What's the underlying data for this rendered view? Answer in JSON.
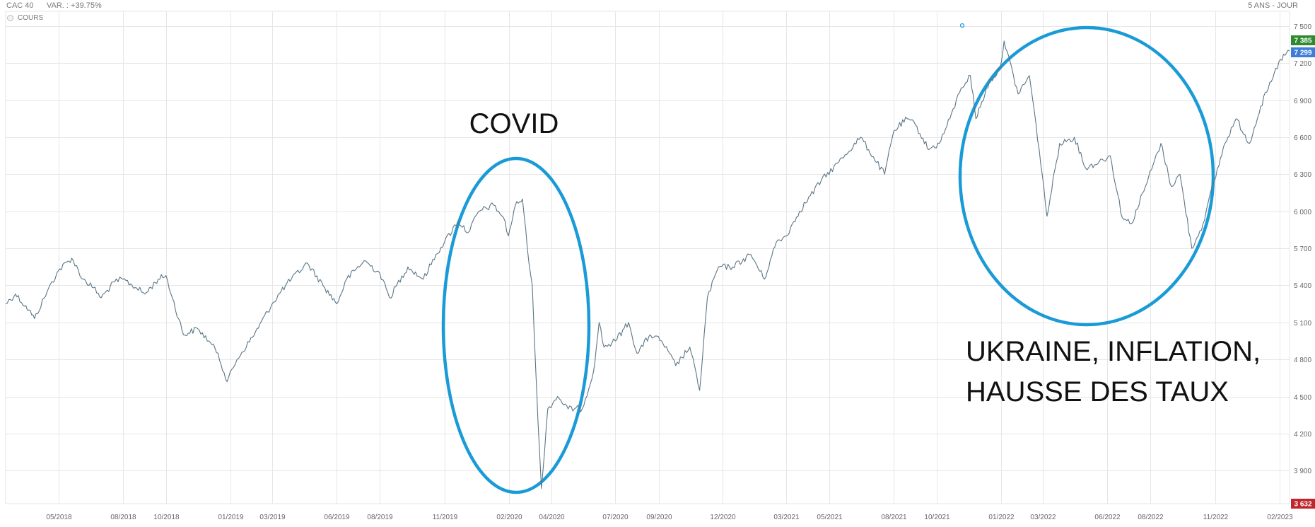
{
  "header": {
    "index_name": "CAC 40",
    "variation": "VAR. : +39.75%",
    "period": "5 ANS - JOUR"
  },
  "legend": {
    "series_label": "COURS"
  },
  "colors": {
    "line": "#5b7585",
    "grid": "#e6e6e6",
    "annotation_circle": "#1a9bd7",
    "badge_max": "#2d8a2d",
    "badge_last": "#3d7fd6",
    "badge_min": "#c0272d"
  },
  "badges": [
    {
      "label": "7 385",
      "value": 7385,
      "color_key": "badge_max"
    },
    {
      "label": "7 299",
      "value": 7299,
      "color_key": "badge_last"
    },
    {
      "label": "3 632",
      "value": 3632,
      "color_key": "badge_min"
    }
  ],
  "annotations": [
    {
      "text": "COVID",
      "lines": [
        "COVID"
      ]
    },
    {
      "text": "UKRAINE, INFLATION, HAUSSE DES TAUX",
      "lines": [
        "UKRAINE, INFLATION,",
        "HAUSSE DES TAUX"
      ]
    }
  ],
  "chart_data": {
    "type": "line",
    "title": "",
    "xlabel": "",
    "ylabel": "",
    "ylim": [
      3632,
      7620
    ],
    "y_ticks": [
      3900,
      4200,
      4500,
      4800,
      5100,
      5400,
      5700,
      6000,
      6300,
      6600,
      6900,
      7200,
      7500
    ],
    "y_tick_labels": [
      "3 900",
      "4 200",
      "4 500",
      "4 800",
      "5 100",
      "5 400",
      "5 700",
      "6 000",
      "6 300",
      "6 600",
      "6 900",
      "7 200",
      "7 500"
    ],
    "x_range": [
      "2018-02-15",
      "2023-02-15"
    ],
    "x_ticks": [
      "2018-05-01",
      "2018-08-01",
      "2018-10-01",
      "2019-01-01",
      "2019-03-01",
      "2019-06-01",
      "2019-08-01",
      "2019-11-01",
      "2020-02-01",
      "2020-04-01",
      "2020-07-01",
      "2020-09-01",
      "2020-12-01",
      "2021-03-01",
      "2021-05-01",
      "2021-08-01",
      "2021-10-01",
      "2022-01-01",
      "2022-03-01",
      "2022-06-01",
      "2022-08-01",
      "2022-11-01",
      "2023-02-01"
    ],
    "x_tick_labels": [
      "05/2018",
      "08/2018",
      "10/2018",
      "01/2019",
      "03/2019",
      "06/2019",
      "08/2019",
      "11/2019",
      "02/2020",
      "04/2020",
      "07/2020",
      "09/2020",
      "12/2020",
      "03/2021",
      "05/2021",
      "08/2021",
      "10/2021",
      "01/2022",
      "03/2022",
      "06/2022",
      "08/2022",
      "11/2022",
      "02/2023"
    ],
    "series": [
      {
        "name": "COURS",
        "points": [
          [
            "2018-02-15",
            5250
          ],
          [
            "2018-03-01",
            5330
          ],
          [
            "2018-03-20",
            5200
          ],
          [
            "2018-03-28",
            5130
          ],
          [
            "2018-04-15",
            5350
          ],
          [
            "2018-05-01",
            5520
          ],
          [
            "2018-05-20",
            5620
          ],
          [
            "2018-06-05",
            5450
          ],
          [
            "2018-06-20",
            5380
          ],
          [
            "2018-07-01",
            5300
          ],
          [
            "2018-07-20",
            5430
          ],
          [
            "2018-08-01",
            5450
          ],
          [
            "2018-08-20",
            5380
          ],
          [
            "2018-09-01",
            5330
          ],
          [
            "2018-09-20",
            5450
          ],
          [
            "2018-10-01",
            5480
          ],
          [
            "2018-10-10",
            5300
          ],
          [
            "2018-10-26",
            5000
          ],
          [
            "2018-11-15",
            5050
          ],
          [
            "2018-12-01",
            4950
          ],
          [
            "2018-12-14",
            4850
          ],
          [
            "2018-12-27",
            4620
          ],
          [
            "2019-01-10",
            4800
          ],
          [
            "2019-02-01",
            4980
          ],
          [
            "2019-03-01",
            5250
          ],
          [
            "2019-03-20",
            5400
          ],
          [
            "2019-04-20",
            5580
          ],
          [
            "2019-05-15",
            5380
          ],
          [
            "2019-06-01",
            5250
          ],
          [
            "2019-06-15",
            5450
          ],
          [
            "2019-07-10",
            5600
          ],
          [
            "2019-08-01",
            5500
          ],
          [
            "2019-08-15",
            5300
          ],
          [
            "2019-09-10",
            5550
          ],
          [
            "2019-10-02",
            5450
          ],
          [
            "2019-10-20",
            5650
          ],
          [
            "2019-11-01",
            5750
          ],
          [
            "2019-11-20",
            5920
          ],
          [
            "2019-12-05",
            5830
          ],
          [
            "2019-12-20",
            6000
          ],
          [
            "2020-01-10",
            6050
          ],
          [
            "2020-01-24",
            5950
          ],
          [
            "2020-01-31",
            5800
          ],
          [
            "2020-02-10",
            6050
          ],
          [
            "2020-02-20",
            6100
          ],
          [
            "2020-02-27",
            5700
          ],
          [
            "2020-03-05",
            5400
          ],
          [
            "2020-03-10",
            4700
          ],
          [
            "2020-03-13",
            4300
          ],
          [
            "2020-03-18",
            3755
          ],
          [
            "2020-03-27",
            4400
          ],
          [
            "2020-04-10",
            4500
          ],
          [
            "2020-04-25",
            4400
          ],
          [
            "2020-05-15",
            4400
          ],
          [
            "2020-05-31",
            4700
          ],
          [
            "2020-06-08",
            5100
          ],
          [
            "2020-06-15",
            4900
          ],
          [
            "2020-07-01",
            4950
          ],
          [
            "2020-07-20",
            5100
          ],
          [
            "2020-08-01",
            4850
          ],
          [
            "2020-08-20",
            5000
          ],
          [
            "2020-09-05",
            4950
          ],
          [
            "2020-09-25",
            4750
          ],
          [
            "2020-10-15",
            4900
          ],
          [
            "2020-10-29",
            4550
          ],
          [
            "2020-11-09",
            5300
          ],
          [
            "2020-11-25",
            5550
          ],
          [
            "2020-12-15",
            5550
          ],
          [
            "2021-01-10",
            5650
          ],
          [
            "2021-01-29",
            5450
          ],
          [
            "2021-02-15",
            5750
          ],
          [
            "2021-03-01",
            5800
          ],
          [
            "2021-03-20",
            6000
          ],
          [
            "2021-04-20",
            6250
          ],
          [
            "2021-05-15",
            6400
          ],
          [
            "2021-06-15",
            6600
          ],
          [
            "2021-07-19",
            6300
          ],
          [
            "2021-08-01",
            6650
          ],
          [
            "2021-08-20",
            6750
          ],
          [
            "2021-09-01",
            6700
          ],
          [
            "2021-09-20",
            6500
          ],
          [
            "2021-10-05",
            6550
          ],
          [
            "2021-10-20",
            6750
          ],
          [
            "2021-11-05",
            7000
          ],
          [
            "2021-11-18",
            7100
          ],
          [
            "2021-11-26",
            6750
          ],
          [
            "2021-12-15",
            7050
          ],
          [
            "2021-12-30",
            7150
          ],
          [
            "2022-01-05",
            7380
          ],
          [
            "2022-01-25",
            6950
          ],
          [
            "2022-02-10",
            7100
          ],
          [
            "2022-02-24",
            6500
          ],
          [
            "2022-03-07",
            5960
          ],
          [
            "2022-03-25",
            6550
          ],
          [
            "2022-04-15",
            6600
          ],
          [
            "2022-05-01",
            6350
          ],
          [
            "2022-05-20",
            6400
          ],
          [
            "2022-06-05",
            6450
          ],
          [
            "2022-06-22",
            5950
          ],
          [
            "2022-07-05",
            5900
          ],
          [
            "2022-07-25",
            6200
          ],
          [
            "2022-08-16",
            6550
          ],
          [
            "2022-08-31",
            6200
          ],
          [
            "2022-09-12",
            6300
          ],
          [
            "2022-09-29",
            5700
          ],
          [
            "2022-10-15",
            5900
          ],
          [
            "2022-10-31",
            6250
          ],
          [
            "2022-11-15",
            6550
          ],
          [
            "2022-12-01",
            6750
          ],
          [
            "2022-12-20",
            6550
          ],
          [
            "2023-01-05",
            6850
          ],
          [
            "2023-01-20",
            7050
          ],
          [
            "2023-02-02",
            7230
          ],
          [
            "2023-02-15",
            7299
          ]
        ]
      }
    ]
  }
}
